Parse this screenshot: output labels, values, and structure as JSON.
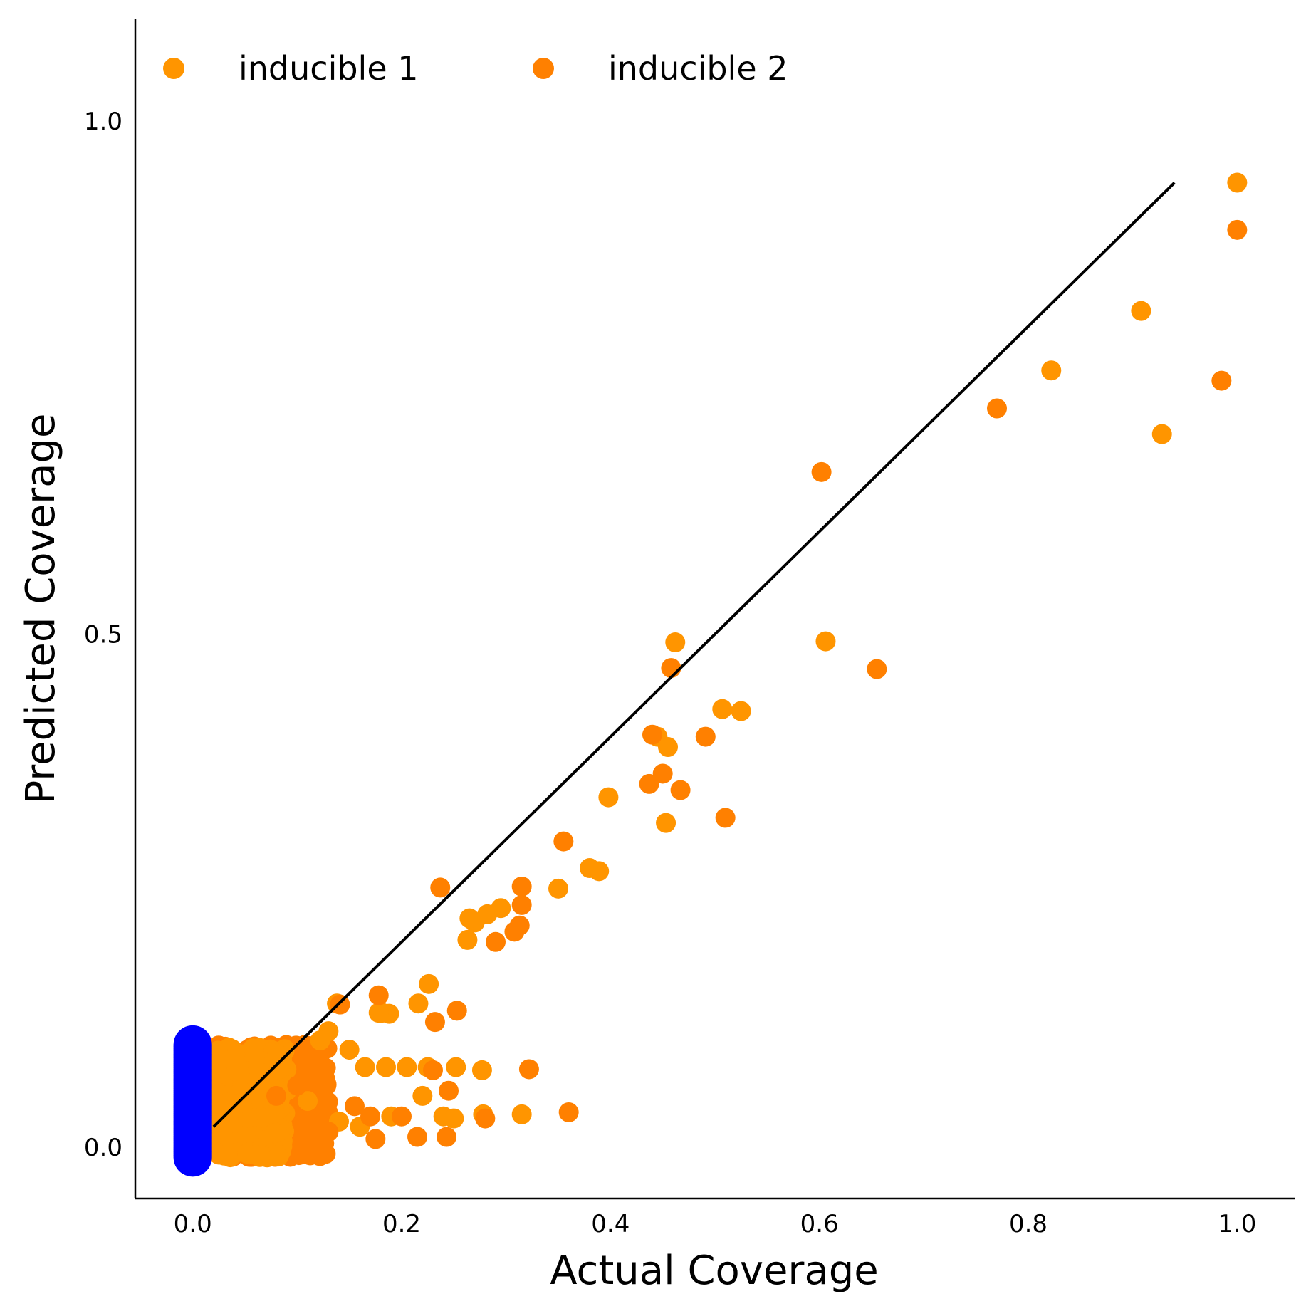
{
  "chart_data": {
    "type": "scatter",
    "title": "",
    "xlabel": "Actual Coverage",
    "ylabel": "Predicted Coverage",
    "xlim": [
      -0.055,
      1.055
    ],
    "ylim": [
      -0.05,
      1.1
    ],
    "xticks": [
      0.0,
      0.2,
      0.4,
      0.6,
      0.8,
      1.0
    ],
    "yticks": [
      0.0,
      0.5,
      1.0
    ],
    "xtick_labels": [
      "0.0",
      "0.2",
      "0.4",
      "0.6",
      "0.8",
      "1.0"
    ],
    "ytick_labels": [
      "0.0",
      "0.5",
      "1.0"
    ],
    "grid": false,
    "legend": {
      "placement": "top-left",
      "columns": 2
    },
    "reference_line": {
      "x": [
        0.02,
        0.94
      ],
      "y": [
        0.02,
        0.94
      ],
      "color": "#000000"
    },
    "colors": {
      "inducible_1": "#FF9500",
      "inducible_2": "#FF8000",
      "low_cluster": "#0000FF"
    },
    "series": [
      {
        "name": "inducible 1",
        "color": "#FF9500",
        "x": [
          1.0,
          0.908,
          0.928,
          0.822,
          0.606,
          0.462,
          0.525,
          0.507,
          0.445,
          0.455,
          0.398,
          0.453,
          0.38,
          0.389,
          0.35,
          0.295,
          0.282,
          0.27,
          0.265,
          0.263,
          0.226,
          0.216,
          0.188,
          0.181,
          0.138,
          0.178,
          0.277,
          0.252,
          0.22,
          0.24,
          0.205,
          0.185,
          0.165,
          0.15,
          0.13,
          0.122,
          0.278,
          0.315,
          0.225,
          0.25,
          0.14,
          0.16,
          0.19,
          0.11,
          0.09
        ],
        "y": [
          0.94,
          0.815,
          0.695,
          0.757,
          0.493,
          0.492,
          0.425,
          0.427,
          0.4,
          0.39,
          0.341,
          0.316,
          0.272,
          0.269,
          0.252,
          0.233,
          0.227,
          0.219,
          0.223,
          0.202,
          0.159,
          0.14,
          0.13,
          0.131,
          0.14,
          0.131,
          0.075,
          0.078,
          0.05,
          0.03,
          0.078,
          0.078,
          0.078,
          0.095,
          0.113,
          0.104,
          0.032,
          0.032,
          0.078,
          0.028,
          0.025,
          0.02,
          0.03,
          0.045,
          0.055
        ]
      },
      {
        "name": "inducible 2",
        "color": "#FF8000",
        "x": [
          1.0,
          0.985,
          0.77,
          0.602,
          0.655,
          0.458,
          0.491,
          0.44,
          0.437,
          0.45,
          0.467,
          0.51,
          0.355,
          0.315,
          0.315,
          0.313,
          0.308,
          0.29,
          0.237,
          0.253,
          0.232,
          0.178,
          0.141,
          0.322,
          0.36,
          0.245,
          0.28,
          0.215,
          0.175,
          0.243,
          0.12,
          0.1,
          0.08,
          0.17,
          0.2,
          0.23,
          0.13,
          0.155
        ],
        "y": [
          0.894,
          0.747,
          0.72,
          0.658,
          0.466,
          0.467,
          0.4,
          0.402,
          0.354,
          0.364,
          0.348,
          0.321,
          0.298,
          0.254,
          0.236,
          0.216,
          0.21,
          0.2,
          0.253,
          0.133,
          0.122,
          0.148,
          0.139,
          0.076,
          0.034,
          0.055,
          0.028,
          0.01,
          0.008,
          0.01,
          0.08,
          0.06,
          0.05,
          0.03,
          0.03,
          0.075,
          0.015,
          0.04
        ]
      }
    ],
    "clusters": [
      {
        "series": "inducible 2",
        "color": "#FF8000",
        "x_range": [
          0.02,
          0.13
        ],
        "y_range": [
          -0.01,
          0.1
        ]
      },
      {
        "series": "inducible 1",
        "color": "#FF9500",
        "x_range": [
          0.02,
          0.09
        ],
        "y_range": [
          -0.01,
          0.1
        ]
      },
      {
        "series": "",
        "color": "#0000FF",
        "x": 0.0,
        "y_range": [
          -0.01,
          0.1
        ]
      }
    ]
  }
}
